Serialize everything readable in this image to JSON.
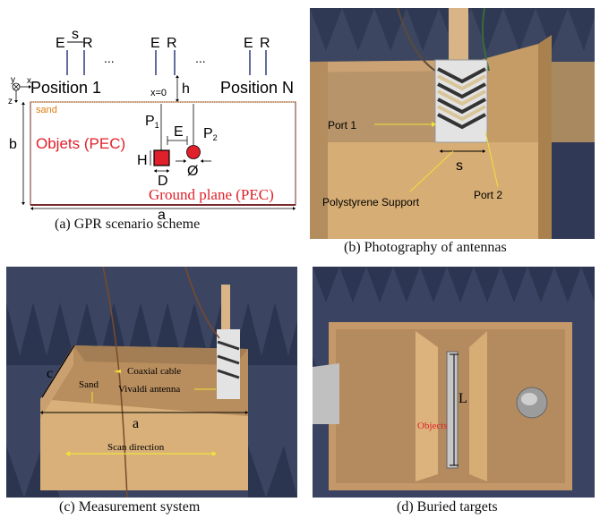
{
  "figure": {
    "a": {
      "caption": "(a)  GPR scenario scheme",
      "antenna_pair_labels": {
        "e": "E",
        "s": "s",
        "r": "R"
      },
      "ellipsis": "...",
      "position_first": "Position 1",
      "position_last": "Position N",
      "axes": {
        "y": "y",
        "x": "x",
        "z": "z"
      },
      "x0": "x=0",
      "h": "h",
      "sand": "sand",
      "b": "b",
      "objects": "Objets (PEC)",
      "p1": "P",
      "p1_sub": "1",
      "p2": "P",
      "p2_sub": "2",
      "e_gap": "E",
      "H": "H",
      "D": "D",
      "diameter": "Ø",
      "ground": "Ground plane (PEC)",
      "a": "a"
    },
    "b": {
      "caption": "(b)  Photography of antennas",
      "port1": "Port 1",
      "port2": "Port 2",
      "s": "s",
      "support": "Polystyrene Support"
    },
    "c": {
      "caption": "(c)  Measurement system",
      "c_label": "c",
      "coax": "Coaxial cable",
      "sand": "Sand",
      "vivaldi": "Vivaldi antenna",
      "a": "a",
      "scan": "Scan direction"
    },
    "d": {
      "caption": "(d)  Buried targets",
      "objects": "Objects",
      "L": "L"
    }
  },
  "colors": {
    "red": "#e0202a",
    "orange": "#e07d10",
    "yellow": "#f1e23a",
    "tan": "#d1aa6f"
  }
}
